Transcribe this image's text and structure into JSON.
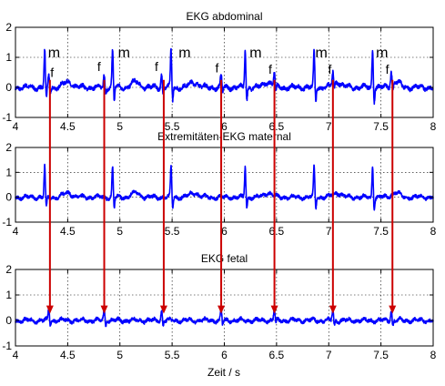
{
  "colors": {
    "signal": "#0000ff",
    "marker": "#cc0000",
    "axis": "#000000",
    "grid": "#000000",
    "background": "#ffffff"
  },
  "xlabel": "Zeit / s",
  "chart_data": [
    {
      "type": "line",
      "title": "EKG abdominal",
      "xlim": [
        4,
        8
      ],
      "ylim": [
        -1,
        2
      ],
      "x_ticks": [
        "4",
        "4.5",
        "5",
        "5.5",
        "6",
        "6.5",
        "7",
        "7.5",
        "8"
      ],
      "y_ticks": [
        "-1",
        "0",
        "1",
        "2"
      ],
      "grid": true,
      "maternal_peaks": [
        4.28,
        4.93,
        5.49,
        6.2,
        6.86,
        7.42
      ],
      "fetal_peaks": [
        4.32,
        4.85,
        5.4,
        5.97,
        6.48,
        7.04,
        7.6
      ],
      "annotations": [
        {
          "text": "m",
          "x": 4.37,
          "y": 1.0,
          "color": "#000000"
        },
        {
          "text": "m",
          "x": 5.04,
          "y": 1.0,
          "color": "#000000"
        },
        {
          "text": "m",
          "x": 5.62,
          "y": 1.0,
          "color": "#000000"
        },
        {
          "text": "m",
          "x": 6.3,
          "y": 1.0,
          "color": "#000000"
        },
        {
          "text": "m",
          "x": 6.93,
          "y": 1.0,
          "color": "#000000"
        },
        {
          "text": "m",
          "x": 7.51,
          "y": 1.0,
          "color": "#000000"
        },
        {
          "text": "f",
          "x": 4.35,
          "y": 0.35,
          "color": "#cc0000"
        },
        {
          "text": "f",
          "x": 4.8,
          "y": 0.55,
          "color": "#cc0000"
        },
        {
          "text": "f",
          "x": 5.35,
          "y": 0.55,
          "color": "#cc0000"
        },
        {
          "text": "f",
          "x": 5.93,
          "y": 0.5,
          "color": "#cc0000"
        },
        {
          "text": "f",
          "x": 6.44,
          "y": 0.45,
          "color": "#cc0000"
        },
        {
          "text": "f",
          "x": 7.01,
          "y": 0.45,
          "color": "#cc0000"
        },
        {
          "text": "f",
          "x": 7.56,
          "y": 0.45,
          "color": "#cc0000"
        }
      ]
    },
    {
      "type": "line",
      "title": "Extremitäten-EKG maternal",
      "xlim": [
        4,
        8
      ],
      "ylim": [
        -1,
        2
      ],
      "x_ticks": [
        "4",
        "4.5",
        "5",
        "5.5",
        "6",
        "6.5",
        "7",
        "7.5",
        "8"
      ],
      "y_ticks": [
        "-1",
        "0",
        "1",
        "2"
      ],
      "grid": true,
      "maternal_peaks": [
        4.28,
        4.93,
        5.49,
        6.2,
        6.86,
        7.42
      ],
      "fetal_peaks": [],
      "annotations": []
    },
    {
      "type": "line",
      "title": "EKG fetal",
      "xlim": [
        4,
        8
      ],
      "ylim": [
        -1,
        2
      ],
      "x_ticks": [
        "4",
        "4.5",
        "5",
        "5.5",
        "6",
        "6.5",
        "7",
        "7.5",
        "8"
      ],
      "y_ticks": [
        "-1",
        "0",
        "1",
        "2"
      ],
      "grid": true,
      "maternal_peaks": [],
      "fetal_peaks": [
        4.32,
        4.85,
        5.4,
        5.97,
        6.48,
        7.04,
        7.6
      ],
      "annotations": []
    }
  ],
  "arrows": {
    "x": [
      4.33,
      4.85,
      5.42,
      5.97,
      6.48,
      7.04,
      7.61
    ],
    "from_y": 0.25,
    "to_y": 0.3
  }
}
